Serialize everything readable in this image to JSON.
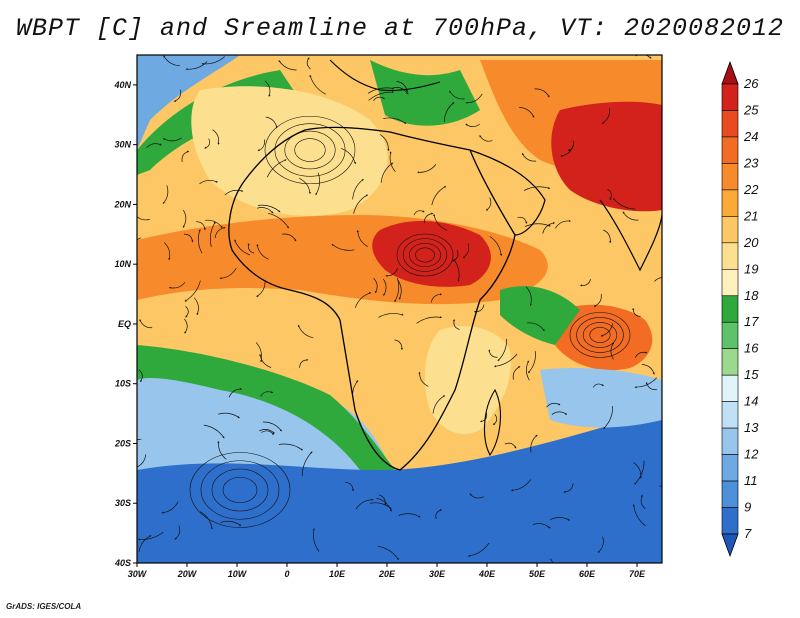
{
  "title": "WBPT [C] and Sreamline at 700hPa, VT: 2020082012",
  "credit": "GrADS: IGES/COLA",
  "map": {
    "variable": "Wet-bulb potential temperature",
    "units": "C",
    "level": "700hPa",
    "valid_time": "2020082012",
    "lon_range": [
      -30,
      75
    ],
    "lat_range": [
      -40,
      45
    ]
  },
  "lat_ticks": [
    {
      "value": 40,
      "label": "40N"
    },
    {
      "value": 30,
      "label": "30N"
    },
    {
      "value": 20,
      "label": "20N"
    },
    {
      "value": 10,
      "label": "10N"
    },
    {
      "value": 0,
      "label": "EQ"
    },
    {
      "value": -10,
      "label": "10S"
    },
    {
      "value": -20,
      "label": "20S"
    },
    {
      "value": -30,
      "label": "30S"
    },
    {
      "value": -40,
      "label": "40S"
    }
  ],
  "lon_ticks": [
    {
      "value": -30,
      "label": "30W"
    },
    {
      "value": -20,
      "label": "20W"
    },
    {
      "value": -10,
      "label": "10W"
    },
    {
      "value": 0,
      "label": "0"
    },
    {
      "value": 10,
      "label": "10E"
    },
    {
      "value": 20,
      "label": "20E"
    },
    {
      "value": 30,
      "label": "30E"
    },
    {
      "value": 40,
      "label": "40E"
    },
    {
      "value": 50,
      "label": "50E"
    },
    {
      "value": 60,
      "label": "60E"
    },
    {
      "value": 70,
      "label": "70E"
    }
  ],
  "colorbar": {
    "labels": [
      "26",
      "25",
      "24",
      "23",
      "22",
      "21",
      "20",
      "19",
      "18",
      "17",
      "16",
      "15",
      "14",
      "13",
      "12",
      "11",
      "9",
      "7"
    ],
    "colors": [
      "#a50f15",
      "#d3221b",
      "#ea4a1f",
      "#f26c24",
      "#f78b2c",
      "#fbaa3a",
      "#fcc764",
      "#fde08f",
      "#fef1bd",
      "#2fa83c",
      "#5ec26a",
      "#9ad98e",
      "#e0f4f9",
      "#bfe0f5",
      "#98c5ec",
      "#6ea9e2",
      "#4d8fd8",
      "#2f6fcc",
      "#1f56b8"
    ]
  },
  "regions": [
    {
      "name": "north-atlantic-cool",
      "color": "#6ea9e2",
      "value": 12
    },
    {
      "name": "sahara-warm",
      "color": "#fde08f",
      "value": 19
    },
    {
      "name": "sahel-hot-band",
      "color": "#f78b2c",
      "value": 22
    },
    {
      "name": "arabia-india-hot",
      "color": "#d3221b",
      "value": 25
    },
    {
      "name": "southern-ocean-cold",
      "color": "#2f6fcc",
      "value": 9
    },
    {
      "name": "south-atlantic-cool",
      "color": "#98c5ec",
      "value": 13
    },
    {
      "name": "indian-ocean-eddy",
      "color": "#f26c24",
      "value": 23
    },
    {
      "name": "green-fringe",
      "color": "#2fa83c",
      "value": 17
    }
  ]
}
